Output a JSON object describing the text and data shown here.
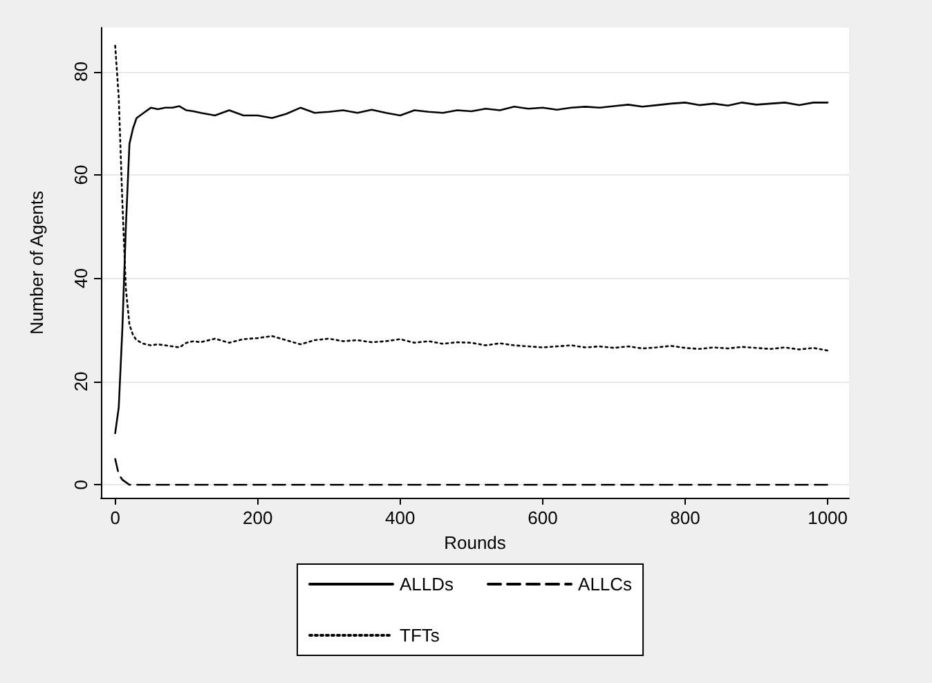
{
  "chart_data": {
    "type": "line",
    "xlabel": "Rounds",
    "ylabel": "Number of Agents",
    "xlim": [
      -20,
      1030
    ],
    "xticks": [
      0,
      200,
      400,
      600,
      800,
      1000
    ],
    "ylim": [
      -2.5,
      88.5
    ],
    "yticks": [
      0,
      20,
      40,
      60,
      80
    ],
    "grid": "y",
    "legend": "bottom",
    "marker": "none",
    "series": [
      {
        "name": "ALLDs",
        "color": "#000000",
        "line_style": "solid",
        "x": [
          0,
          5,
          10,
          15,
          20,
          25,
          30,
          40,
          50,
          60,
          70,
          80,
          90,
          100,
          110,
          120,
          140,
          160,
          180,
          200,
          220,
          240,
          260,
          280,
          300,
          320,
          340,
          360,
          380,
          400,
          420,
          440,
          460,
          480,
          500,
          520,
          540,
          560,
          580,
          600,
          620,
          640,
          660,
          680,
          700,
          720,
          740,
          760,
          780,
          800,
          820,
          840,
          860,
          880,
          900,
          920,
          940,
          960,
          980,
          1000
        ],
        "values": [
          10,
          15,
          30,
          50,
          66,
          69,
          71,
          72,
          73,
          72.7,
          73,
          73,
          73.3,
          72.5,
          72.3,
          72,
          71.5,
          72.5,
          71.5,
          71.5,
          71,
          71.8,
          73,
          72,
          72.2,
          72.5,
          72,
          72.6,
          72,
          71.5,
          72.5,
          72.2,
          72,
          72.5,
          72.3,
          72.8,
          72.5,
          73.2,
          72.8,
          73,
          72.6,
          73,
          73.2,
          73,
          73.3,
          73.6,
          73.2,
          73.5,
          73.8,
          74,
          73.5,
          73.8,
          73.4,
          74,
          73.6,
          73.8,
          74,
          73.5,
          74,
          74
        ]
      },
      {
        "name": "ALLCs",
        "color": "#000000",
        "line_style": "dashed",
        "x": [
          0,
          5,
          10,
          15,
          20,
          1000
        ],
        "values": [
          5,
          2,
          1,
          0.5,
          0,
          0
        ]
      },
      {
        "name": "TFTs",
        "color": "#000000",
        "line_style": "dotted",
        "x": [
          0,
          5,
          10,
          15,
          20,
          25,
          30,
          40,
          50,
          60,
          70,
          80,
          90,
          100,
          110,
          120,
          140,
          160,
          180,
          200,
          220,
          240,
          260,
          280,
          300,
          320,
          340,
          360,
          380,
          400,
          420,
          440,
          460,
          480,
          500,
          520,
          540,
          560,
          580,
          600,
          620,
          640,
          660,
          680,
          700,
          720,
          740,
          760,
          780,
          800,
          820,
          840,
          860,
          880,
          900,
          920,
          940,
          960,
          980,
          1000
        ],
        "values": [
          85,
          75,
          55,
          38,
          31,
          29,
          28,
          27.3,
          27,
          27.2,
          27,
          26.8,
          26.6,
          27.5,
          27.8,
          27.6,
          28.3,
          27.5,
          28.2,
          28.4,
          28.8,
          28,
          27.2,
          28,
          28.3,
          27.8,
          28,
          27.6,
          27.8,
          28.2,
          27.5,
          27.8,
          27.3,
          27.6,
          27.5,
          27,
          27.4,
          27,
          26.8,
          26.6,
          26.8,
          27,
          26.6,
          26.8,
          26.5,
          26.8,
          26.4,
          26.6,
          26.9,
          26.5,
          26.3,
          26.6,
          26.4,
          26.7,
          26.5,
          26.3,
          26.6,
          26.2,
          26.5,
          26
        ]
      }
    ]
  }
}
